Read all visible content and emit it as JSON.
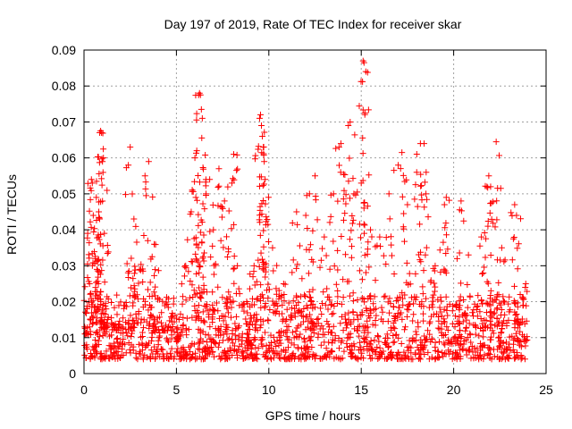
{
  "chart_data": {
    "type": "scatter",
    "title": "Day 197 of 2019, Rate Of TEC Index for receiver skar",
    "xlabel": "GPS time / hours",
    "ylabel": "ROTI / TECUs",
    "xlim": [
      0,
      25
    ],
    "ylim": [
      0,
      0.09
    ],
    "x_ticks": [
      0,
      5,
      10,
      15,
      20,
      25
    ],
    "x_tick_labels": [
      "0",
      "5",
      "10",
      "15",
      "20",
      "25"
    ],
    "y_ticks": [
      0,
      0.01,
      0.02,
      0.03,
      0.04,
      0.05,
      0.06,
      0.07,
      0.08,
      0.09
    ],
    "y_tick_labels": [
      "0",
      "0.01",
      "0.02",
      "0.03",
      "0.04",
      "0.05",
      "0.06",
      "0.07",
      "0.08",
      "0.09"
    ],
    "grid": true,
    "marker": "+",
    "series": [
      {
        "name": "ROTI",
        "color": "#ff0000",
        "points": [
          [
            0.1,
            0.011
          ],
          [
            0.2,
            0.039
          ],
          [
            0.3,
            0.025
          ],
          [
            0.4,
            0.054
          ],
          [
            0.45,
            0.053
          ],
          [
            0.5,
            0.044
          ],
          [
            0.6,
            0.032
          ],
          [
            0.7,
            0.029
          ],
          [
            0.8,
            0.045
          ],
          [
            0.85,
            0.067
          ],
          [
            0.9,
            0.0675
          ],
          [
            0.95,
            0.067
          ],
          [
            1.0,
            0.059
          ],
          [
            1.05,
            0.06
          ],
          [
            1.1,
            0.039
          ],
          [
            1.2,
            0.018
          ],
          [
            1.5,
            0.014
          ],
          [
            2.0,
            0.013
          ],
          [
            2.4,
            0.058
          ],
          [
            2.5,
            0.063
          ],
          [
            2.7,
            0.043
          ],
          [
            3.0,
            0.029
          ],
          [
            3.3,
            0.055
          ],
          [
            3.5,
            0.059
          ],
          [
            3.8,
            0.036
          ],
          [
            4.0,
            0.021
          ],
          [
            4.5,
            0.012
          ],
          [
            5.0,
            0.009
          ],
          [
            5.5,
            0.03
          ],
          [
            5.8,
            0.045
          ],
          [
            6.0,
            0.06
          ],
          [
            6.1,
            0.062
          ],
          [
            6.2,
            0.0775
          ],
          [
            6.25,
            0.078
          ],
          [
            6.3,
            0.0775
          ],
          [
            6.35,
            0.0735
          ],
          [
            6.4,
            0.071
          ],
          [
            6.6,
            0.05
          ],
          [
            6.8,
            0.054
          ],
          [
            7.0,
            0.04
          ],
          [
            7.3,
            0.057
          ],
          [
            7.6,
            0.048
          ],
          [
            8.0,
            0.053
          ],
          [
            8.1,
            0.061
          ],
          [
            8.3,
            0.03
          ],
          [
            8.8,
            0.02
          ],
          [
            9.2,
            0.03
          ],
          [
            9.5,
            0.071
          ],
          [
            9.55,
            0.072
          ],
          [
            9.6,
            0.069
          ],
          [
            9.65,
            0.066
          ],
          [
            9.7,
            0.063
          ],
          [
            9.75,
            0.059
          ],
          [
            9.8,
            0.054
          ],
          [
            10.2,
            0.035
          ],
          [
            10.8,
            0.025
          ],
          [
            11.5,
            0.045
          ],
          [
            12.0,
            0.044
          ],
          [
            12.2,
            0.05
          ],
          [
            12.5,
            0.055
          ],
          [
            13.0,
            0.038
          ],
          [
            13.5,
            0.05
          ],
          [
            13.8,
            0.063
          ],
          [
            13.9,
            0.064
          ],
          [
            14.3,
            0.069
          ],
          [
            14.4,
            0.07
          ],
          [
            14.6,
            0.05
          ],
          [
            15.0,
            0.053
          ],
          [
            15.1,
            0.087
          ],
          [
            15.15,
            0.0865
          ],
          [
            15.2,
            0.0725
          ],
          [
            15.5,
            0.04
          ],
          [
            16.0,
            0.038
          ],
          [
            16.5,
            0.05
          ],
          [
            17.0,
            0.058
          ],
          [
            17.2,
            0.0615
          ],
          [
            17.5,
            0.047
          ],
          [
            18.0,
            0.056
          ],
          [
            18.2,
            0.064
          ],
          [
            18.4,
            0.064
          ],
          [
            18.5,
            0.05
          ],
          [
            19.0,
            0.03
          ],
          [
            19.5,
            0.047
          ],
          [
            19.6,
            0.049
          ],
          [
            20.4,
            0.048
          ],
          [
            20.8,
            0.033
          ],
          [
            21.5,
            0.038
          ],
          [
            21.8,
            0.052
          ],
          [
            21.9,
            0.055
          ],
          [
            22.0,
            0.052
          ],
          [
            22.3,
            0.0645
          ],
          [
            22.6,
            0.035
          ],
          [
            23.3,
            0.047
          ],
          [
            23.4,
            0.044
          ],
          [
            23.6,
            0.022
          ],
          [
            23.9,
            0.025
          ]
        ],
        "background_band": {
          "description": "dense marker cloud covering the whole day",
          "x_range": [
            0,
            24
          ],
          "typical_range": [
            0.004,
            0.022
          ]
        }
      }
    ]
  }
}
